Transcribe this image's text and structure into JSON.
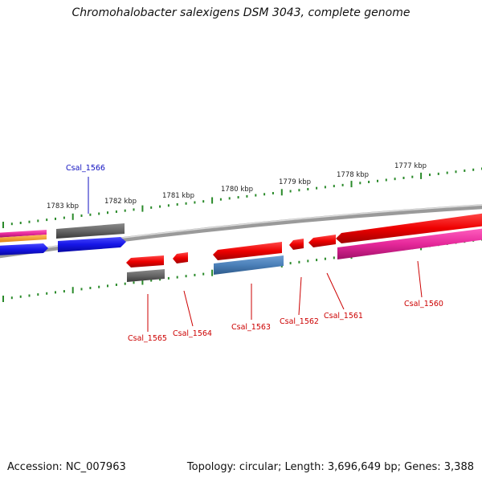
{
  "title": "Chromohalobacter salexigens DSM 3043, complete genome",
  "footer": {
    "accession": "Accession: NC_007963",
    "summary": "Topology: circular; Length: 3,696,649 bp; Genes: 3,388"
  },
  "ruler_labels": [
    "1777 kbp",
    "1778 kbp",
    "1779 kbp",
    "1780 kbp",
    "1781 kbp",
    "1782 kbp",
    "1783 kbp"
  ],
  "gene_labels": [
    "Csal_1566",
    "Csal_1565",
    "Csal_1564",
    "Csal_1563",
    "Csal_1562",
    "Csal_1561",
    "Csal_1560"
  ],
  "colors": {
    "backbone": "#8c8c8c",
    "ruler_dots": "#2a8a2a",
    "label_blue": "#1010c0",
    "label_red": "#cc0000",
    "red_gene": "#ee0000",
    "gray_gene": "#666666",
    "blue_gene": "#1515e6",
    "steelblue_gene": "#4a7fb8",
    "pink_gene": "#e6289a",
    "orange_gene": "#f39a1a",
    "magenta_gene": "#e01a8a"
  }
}
